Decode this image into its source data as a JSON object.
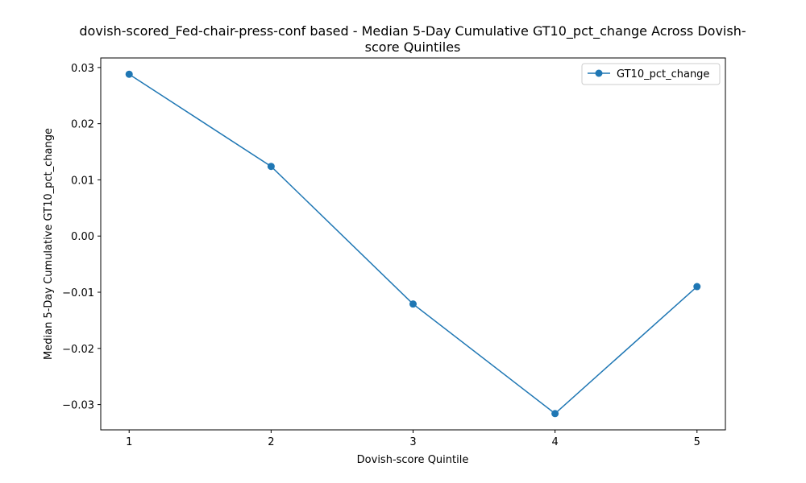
{
  "chart_data": {
    "type": "line",
    "title_line1": "dovish-scored_Fed-chair-press-conf based - Median 5-Day Cumulative GT10_pct_change Across Dovish-",
    "title_line2": "score Quintiles",
    "xlabel": "Dovish-score Quintile",
    "ylabel": "Median 5-Day Cumulative GT10_pct_change",
    "x": [
      1,
      2,
      3,
      4,
      5
    ],
    "x_tick_labels": [
      "1",
      "2",
      "3",
      "4",
      "5"
    ],
    "xlim": [
      0.8,
      5.2
    ],
    "ylim": [
      -0.0345,
      0.0317
    ],
    "y_ticks": [
      0.03,
      0.02,
      0.01,
      0.0,
      -0.01,
      -0.02,
      -0.03
    ],
    "y_tick_labels": [
      "0.03",
      "0.02",
      "0.01",
      "0.00",
      "−0.01",
      "−0.02",
      "−0.03"
    ],
    "series": [
      {
        "name": "GT10_pct_change",
        "values": [
          0.0288,
          0.0124,
          -0.0121,
          -0.0316,
          -0.009
        ],
        "color": "#1f77b4",
        "marker": "circle"
      }
    ],
    "legend": {
      "position": "top-right"
    },
    "grid": false
  }
}
